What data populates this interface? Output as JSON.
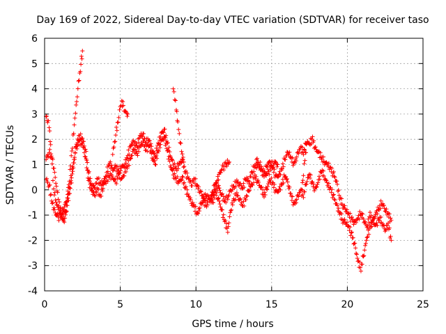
{
  "chart_data": {
    "type": "scatter",
    "title": "Day 169 of 2022, Sidereal Day-to-day VTEC variation (SDTVAR) for receiver taso",
    "xlabel": "GPS time / hours",
    "ylabel": "SDTVAR / TECUs",
    "xlim": [
      0,
      25
    ],
    "ylim": [
      -4,
      6
    ],
    "xticks": [
      0,
      5,
      10,
      15,
      20,
      25
    ],
    "yticks": [
      -4,
      -3,
      -2,
      -1,
      0,
      1,
      2,
      3,
      4,
      5,
      6
    ],
    "grid": true,
    "marker": "plus",
    "series": [
      {
        "name": "SDTVAR",
        "color": "#ff0000",
        "x": [
          0.1,
          0.2,
          0.3,
          0.4,
          0.5,
          0.6,
          0.8,
          1.0,
          1.2,
          1.4,
          1.6,
          1.8,
          2.0,
          2.2,
          2.4,
          2.5
        ],
        "y": [
          2.9,
          2.7,
          2.5,
          1.8,
          1.0,
          0.0,
          -0.6,
          -0.9,
          -1.1,
          -0.8,
          0.2,
          1.5,
          2.8,
          4.0,
          5.0,
          5.5
        ]
      },
      {
        "name": "SDTVAR",
        "color": "#ff0000",
        "x": [
          0.1,
          0.3,
          0.5,
          0.7,
          0.9,
          1.1,
          1.3,
          1.5,
          1.7,
          1.9,
          2.1,
          2.3,
          2.5,
          2.7,
          2.9,
          3.1,
          3.3,
          3.5,
          3.7,
          3.9,
          4.1,
          4.3,
          4.5,
          4.7,
          4.9,
          5.1,
          5.3,
          5.5,
          5.7,
          5.9,
          6.1,
          6.3,
          6.5,
          6.7,
          6.9,
          7.1,
          7.3,
          7.5,
          7.7,
          7.9,
          8.1,
          8.3,
          8.5,
          8.7,
          8.9,
          9.1,
          9.3,
          9.5,
          9.7,
          9.9,
          10.1,
          10.3,
          10.5,
          10.7,
          10.9,
          11.1,
          11.3,
          11.5,
          11.7,
          11.9,
          12.1,
          12.3,
          12.5,
          12.7,
          12.9,
          13.1,
          13.3,
          13.5,
          13.7,
          13.9,
          14.1,
          14.3,
          14.5,
          14.7,
          14.9,
          15.1,
          15.3,
          15.5,
          15.7,
          15.9,
          16.1,
          16.3,
          16.5,
          16.7,
          16.9,
          17.1,
          17.3,
          17.5,
          17.7,
          17.9,
          18.1,
          18.3,
          18.5,
          18.7,
          18.9,
          19.1,
          19.3,
          19.5,
          19.7,
          19.9,
          20.1,
          20.3,
          20.5,
          20.7,
          20.9,
          21.1,
          21.3,
          21.5,
          21.7,
          21.9,
          22.1,
          22.3,
          22.5,
          22.7,
          22.9
        ],
        "y": [
          1.2,
          1.5,
          1.3,
          0.5,
          -0.4,
          -0.9,
          -1.3,
          -0.6,
          0.1,
          0.9,
          1.8,
          2.1,
          2.0,
          1.6,
          0.7,
          0.2,
          0.1,
          0.4,
          0.2,
          0.3,
          0.7,
          1.1,
          0.8,
          0.9,
          0.7,
          0.9,
          1.0,
          1.4,
          1.8,
          1.9,
          1.7,
          2.1,
          2.2,
          1.9,
          2.0,
          1.6,
          1.3,
          1.8,
          2.2,
          2.4,
          1.9,
          1.4,
          1.0,
          0.8,
          1.0,
          1.2,
          0.7,
          0.5,
          0.2,
          0.4,
          0.1,
          -0.1,
          -0.3,
          -0.2,
          -0.4,
          -0.1,
          0.2,
          0.1,
          -0.2,
          -0.4,
          -0.3,
          0.0,
          0.1,
          0.3,
          0.2,
          0.1,
          0.5,
          0.3,
          0.7,
          0.9,
          1.0,
          0.8,
          0.6,
          1.0,
          1.1,
          0.8,
          0.5,
          0.6,
          0.9,
          1.3,
          1.5,
          1.2,
          1.0,
          1.4,
          1.7,
          1.5,
          1.9,
          1.8,
          2.0,
          1.6,
          1.5,
          1.3,
          1.1,
          1.0,
          0.8,
          0.6,
          0.3,
          -0.3,
          -0.6,
          -0.8,
          -1.0,
          -1.2,
          -1.3,
          -1.1,
          -0.9,
          -1.2,
          -1.5,
          -1.0,
          -1.3,
          -1.4,
          -1.1,
          -1.3,
          -1.6,
          -1.4,
          -2.0
        ]
      },
      {
        "name": "SDTVAR",
        "color": "#ff0000",
        "x": [
          0.1,
          0.3,
          0.5,
          0.7,
          0.9,
          1.1,
          1.3,
          1.5,
          1.7,
          1.9,
          2.1,
          2.3,
          2.5,
          2.7,
          2.9,
          3.1,
          3.3,
          3.5,
          3.7,
          3.9,
          4.1,
          4.3,
          4.5,
          4.7,
          4.9,
          5.1,
          5.3,
          5.5,
          5.7,
          5.9,
          6.1,
          6.3,
          6.5,
          6.7,
          6.9,
          7.1,
          7.3,
          7.5,
          7.7,
          7.9,
          8.1,
          8.3,
          8.5,
          8.7,
          8.9,
          9.1,
          9.3,
          9.5,
          9.7,
          9.9,
          10.1,
          10.3,
          10.5,
          10.7,
          10.9,
          11.1,
          11.3,
          11.5,
          11.7,
          11.9,
          12.1,
          12.3,
          12.5,
          12.7,
          12.9,
          13.1,
          13.3,
          13.5,
          13.7,
          13.9,
          14.1,
          14.3,
          14.5,
          14.7,
          14.9,
          15.1,
          15.3,
          15.5,
          15.7,
          15.9,
          16.1,
          16.3,
          16.5,
          16.7,
          16.9,
          17.1,
          17.3,
          17.5,
          17.7,
          17.9,
          18.1,
          18.3,
          18.5,
          18.7,
          18.9,
          19.1,
          19.3,
          19.5,
          19.7,
          19.9,
          20.1,
          20.3,
          20.5,
          20.7,
          20.9,
          21.1,
          21.3,
          21.5,
          21.7,
          21.9,
          22.1,
          22.3,
          22.5,
          22.7,
          22.9
        ],
        "y": [
          0.4,
          0.2,
          -0.5,
          -0.9,
          -1.1,
          -1.0,
          -0.7,
          -0.3,
          0.3,
          1.1,
          1.7,
          1.9,
          1.8,
          1.3,
          0.4,
          0.0,
          -0.2,
          0.0,
          -0.3,
          0.2,
          0.4,
          0.6,
          0.5,
          0.3,
          0.6,
          0.4,
          0.7,
          1.0,
          1.3,
          1.6,
          1.4,
          1.7,
          1.9,
          1.6,
          1.8,
          1.3,
          1.0,
          1.5,
          1.9,
          2.1,
          1.6,
          1.0,
          0.6,
          0.4,
          0.3,
          0.5,
          0.1,
          -0.2,
          -0.5,
          -0.7,
          -1.0,
          -0.6,
          -0.4,
          -0.6,
          -0.3,
          -0.5,
          -0.1,
          -0.4,
          -0.8,
          -1.2,
          -1.6,
          -0.8,
          -0.4,
          -0.2,
          -0.4,
          -0.6,
          -0.3,
          0.0,
          0.2,
          0.5,
          0.3,
          0.1,
          -0.2,
          0.1,
          0.4,
          0.2,
          -0.1,
          0.0,
          0.3,
          0.6,
          0.2,
          -0.3,
          -0.6,
          -0.3,
          0.0,
          -0.2,
          0.3,
          0.6,
          0.2,
          0.0,
          0.4,
          0.8,
          0.5,
          0.2,
          0.0,
          -0.3,
          -0.6,
          -0.9,
          -1.2,
          -1.3,
          -1.5,
          -1.8,
          -2.2,
          -2.8,
          -3.1,
          -2.5,
          -1.9,
          -1.5,
          -1.2,
          -0.9,
          -0.7,
          -0.5,
          -0.8,
          -1.0,
          -1.2
        ]
      },
      {
        "name": "SDTVAR",
        "color": "#ff0000",
        "x": [
          4.5,
          4.7,
          4.9,
          5.0,
          5.1,
          5.2,
          5.3,
          5.5
        ],
        "y": [
          1.4,
          2.2,
          2.9,
          3.3,
          3.5,
          3.3,
          3.1,
          3.0
        ]
      },
      {
        "name": "SDTVAR",
        "color": "#ff0000",
        "x": [
          8.5,
          8.6,
          8.7,
          8.8,
          8.9,
          9.0,
          9.1,
          9.2
        ],
        "y": [
          4.0,
          3.6,
          3.2,
          2.7,
          2.2,
          1.8,
          1.4,
          1.1
        ]
      },
      {
        "name": "SDTVAR",
        "color": "#ff0000",
        "x": [
          11.0,
          11.2,
          11.4,
          11.6,
          11.8,
          12.0,
          12.2
        ],
        "y": [
          -0.5,
          0.0,
          0.4,
          0.7,
          0.9,
          1.0,
          1.1
        ]
      },
      {
        "name": "SDTVAR",
        "color": "#ff0000",
        "x": [
          14.0,
          14.2,
          14.4,
          14.6,
          14.8,
          15.0,
          15.2,
          15.4
        ],
        "y": [
          1.2,
          1.0,
          0.8,
          0.6,
          0.7,
          0.9,
          1.1,
          1.0
        ]
      },
      {
        "name": "SDTVAR",
        "color": "#ff0000",
        "x": [
          17.0,
          17.1,
          17.2,
          17.3
        ],
        "y": [
          0.0,
          0.6,
          1.2,
          1.8
        ]
      }
    ]
  }
}
